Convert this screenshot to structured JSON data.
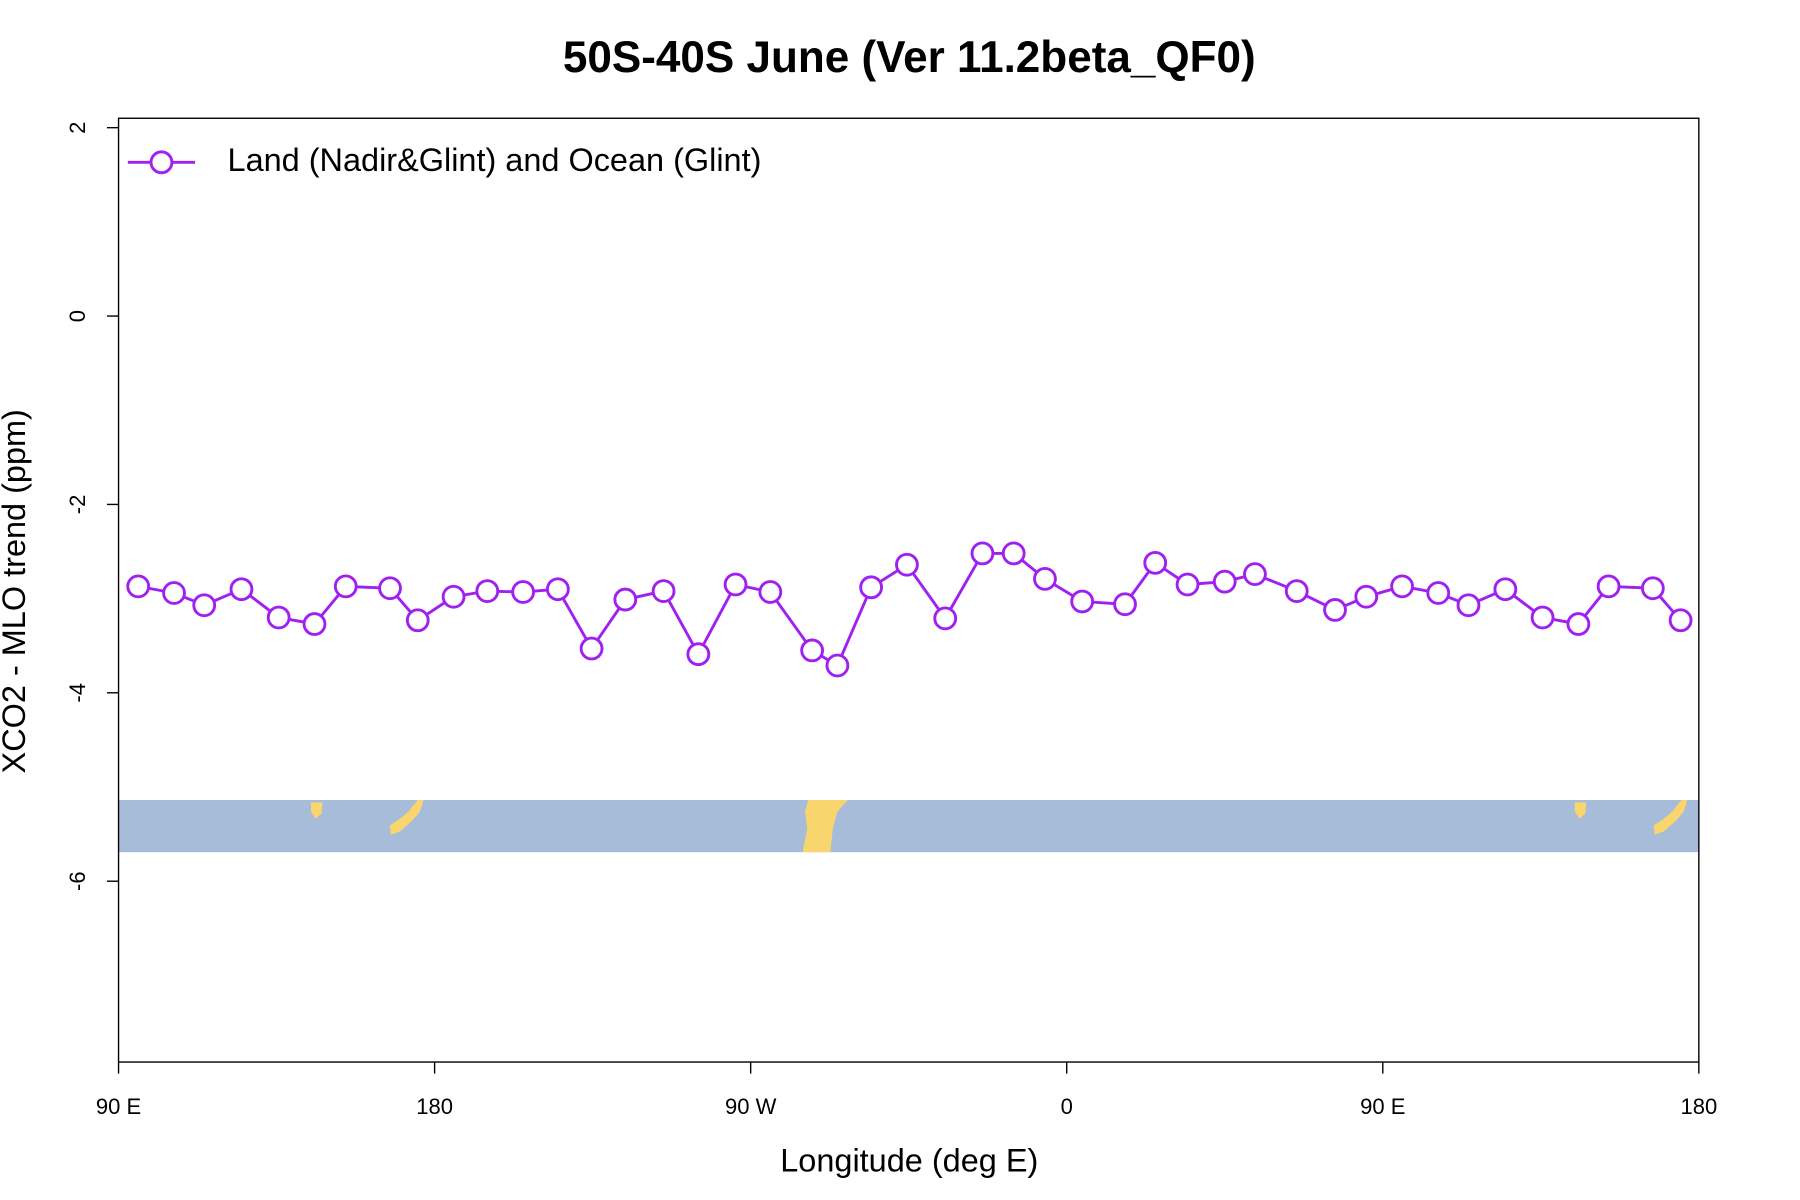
{
  "chart_data": {
    "type": "line",
    "title": "50S-40S June (Ver 11.2beta_QF0)",
    "x_label": "Longitude (deg E)",
    "y_label": "XCO2 - MLO trend (ppm)",
    "xlim": [
      90,
      540
    ],
    "xticks": [
      {
        "value": 90,
        "label": "90 E"
      },
      {
        "value": 180,
        "label": "180"
      },
      {
        "value": 270,
        "label": "90 W"
      },
      {
        "value": 360,
        "label": "0"
      },
      {
        "value": 450,
        "label": "90 E"
      },
      {
        "value": 540,
        "label": "180"
      }
    ],
    "ylim": [
      -7.92,
      2.1
    ],
    "yticks": [
      2,
      0,
      -2,
      -4,
      -6
    ],
    "legend": "topleft",
    "series": [
      {
        "name": "Land (Nadir&Glint) and Ocean (Glint)",
        "color": "#a020f0",
        "x": [
          95.6,
          105.8,
          114.4,
          125.0,
          135.6,
          145.8,
          154.7,
          167.3,
          175.2,
          185.4,
          195.0,
          205.2,
          215.1,
          224.7,
          234.3,
          245.2,
          255.1,
          265.7,
          275.6,
          287.5,
          294.7,
          304.3,
          314.5,
          325.4,
          336.0,
          344.9,
          353.8,
          364.4,
          376.6,
          385.2,
          394.4,
          405.0,
          413.6,
          425.5,
          436.4,
          445.3,
          455.5,
          465.8,
          474.4,
          484.9,
          495.5,
          505.7,
          514.3,
          526.9,
          534.8
        ],
        "values": [
          -2.87,
          -2.94,
          -3.07,
          -2.9,
          -3.2,
          -3.27,
          -2.87,
          -2.89,
          -3.23,
          -2.98,
          -2.92,
          -2.93,
          -2.9,
          -3.53,
          -3.01,
          -2.92,
          -3.59,
          -2.85,
          -2.93,
          -3.55,
          -3.71,
          -2.88,
          -2.64,
          -3.21,
          -2.52,
          -2.52,
          -2.79,
          -3.03,
          -3.06,
          -2.62,
          -2.85,
          -2.82,
          -2.74,
          -2.92,
          -3.12,
          -2.98,
          -2.87,
          -2.94,
          -3.07,
          -2.9,
          -3.2,
          -3.27,
          -2.87,
          -2.89,
          -3.23
        ]
      }
    ]
  }
}
